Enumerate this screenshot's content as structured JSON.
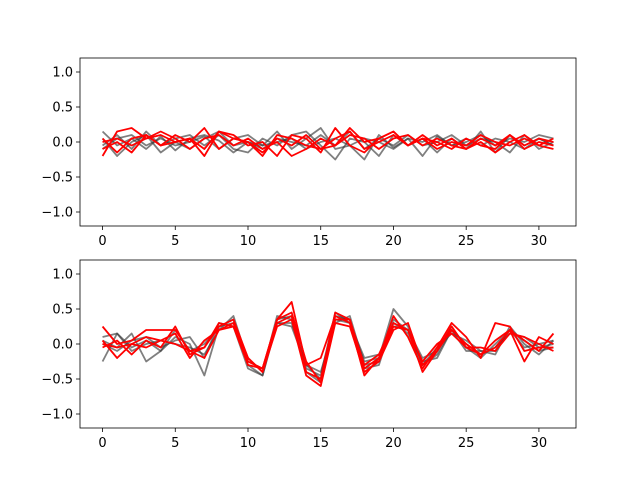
{
  "colors": {
    "gray": "#3a3a3a",
    "red": "#ff0000"
  },
  "chart_data": [
    {
      "type": "line",
      "xlim": [
        -1.55,
        32.55
      ],
      "ylim": [
        -1.2,
        1.2
      ],
      "xticks": [
        0,
        5,
        10,
        15,
        20,
        25,
        30
      ],
      "yticks": [
        1.0,
        0.5,
        0.0,
        -0.5,
        -1.0
      ],
      "xtick_labels": [
        "0",
        "5",
        "10",
        "15",
        "20",
        "25",
        "30"
      ],
      "ytick_labels": [
        "1.0",
        "0.5",
        "0.0",
        "−0.5",
        "−1.0"
      ],
      "grid": false,
      "series": [
        {
          "color": "gray",
          "values": [
            0.15,
            -0.05,
            0.05,
            -0.1,
            0.08,
            -0.12,
            0.05,
            0.1,
            0.02,
            -0.15,
            0.0,
            -0.05,
            0.15,
            -0.1,
            0.05,
            0.2,
            -0.1,
            -0.05,
            -0.25,
            0.1,
            -0.08,
            0.05,
            -0.2,
            0.08,
            -0.05,
            0.0,
            0.1,
            -0.05,
            0.05,
            0.0,
            0.1,
            0.05
          ]
        },
        {
          "color": "gray",
          "values": [
            -0.05,
            0.1,
            -0.1,
            0.15,
            -0.05,
            0.05,
            0.1,
            -0.05,
            0.1,
            -0.1,
            -0.15,
            0.05,
            -0.05,
            0.1,
            0.15,
            -0.05,
            -0.25,
            0.05,
            0.0,
            -0.2,
            0.1,
            -0.05,
            0.05,
            -0.15,
            0.05,
            -0.1,
            0.15,
            -0.15,
            0.1,
            -0.05,
            0.05,
            -0.05
          ]
        },
        {
          "color": "gray",
          "values": [
            0.05,
            -0.2,
            0.0,
            0.1,
            -0.15,
            0.0,
            -0.1,
            0.05,
            0.15,
            -0.05,
            0.0,
            -0.1,
            0.05,
            0.0,
            -0.05,
            0.1,
            -0.05,
            0.15,
            -0.1,
            0.05,
            -0.05,
            0.1,
            -0.05,
            0.0,
            0.1,
            -0.05,
            0.05,
            0.0,
            -0.15,
            0.1,
            -0.1,
            0.0
          ]
        },
        {
          "color": "gray",
          "values": [
            -0.1,
            0.05,
            0.1,
            -0.05,
            0.05,
            -0.05,
            0.0,
            0.08,
            -0.1,
            0.05,
            0.1,
            -0.05,
            0.0,
            0.05,
            -0.1,
            0.0,
            0.05,
            -0.05,
            0.05,
            0.0,
            -0.1,
            0.05,
            0.0,
            0.1,
            -0.05,
            0.05,
            -0.05,
            0.05,
            0.0,
            -0.1,
            0.05,
            -0.05
          ]
        },
        {
          "color": "red",
          "values": [
            -0.2,
            0.15,
            0.2,
            0.05,
            0.1,
            0.0,
            0.05,
            -0.2,
            0.15,
            0.1,
            -0.05,
            0.0,
            -0.2,
            0.1,
            0.05,
            -0.15,
            0.2,
            -0.05,
            -0.15,
            0.05,
            0.15,
            -0.05,
            0.05,
            0.0,
            -0.1,
            0.05,
            -0.05,
            -0.1,
            0.1,
            -0.05,
            0.05,
            0.0
          ]
        },
        {
          "color": "red",
          "values": [
            0.05,
            -0.15,
            0.05,
            0.1,
            -0.05,
            0.1,
            0.0,
            0.2,
            -0.1,
            0.05,
            0.0,
            -0.15,
            0.05,
            -0.05,
            0.1,
            -0.1,
            0.05,
            0.15,
            -0.1,
            0.0,
            0.1,
            -0.05,
            0.05,
            -0.1,
            0.0,
            -0.05,
            0.1,
            0.0,
            -0.05,
            0.05,
            -0.05,
            0.05
          ]
        },
        {
          "color": "red",
          "values": [
            0.0,
            0.05,
            -0.05,
            0.05,
            0.15,
            0.05,
            -0.1,
            0.05,
            0.1,
            -0.05,
            0.05,
            -0.1,
            0.0,
            -0.2,
            -0.1,
            0.05,
            -0.05,
            0.1,
            0.05,
            -0.1,
            0.05,
            0.1,
            -0.05,
            0.05,
            -0.05,
            -0.1,
            0.05,
            -0.05,
            0.1,
            -0.1,
            0.0,
            -0.05
          ]
        },
        {
          "color": "red",
          "values": [
            -0.1,
            0.0,
            -0.15,
            0.1,
            -0.05,
            0.0,
            0.05,
            -0.1,
            0.15,
            0.05,
            0.0,
            -0.2,
            0.1,
            0.05,
            -0.05,
            -0.1,
            -0.05,
            0.2,
            0.0,
            0.05,
            0.15,
            -0.05,
            0.1,
            -0.05,
            0.05,
            -0.1,
            0.0,
            -0.15,
            0.0,
            0.1,
            -0.05,
            -0.1
          ]
        }
      ]
    },
    {
      "type": "line",
      "xlim": [
        -1.55,
        32.55
      ],
      "ylim": [
        -1.2,
        1.2
      ],
      "xticks": [
        0,
        5,
        10,
        15,
        20,
        25,
        30
      ],
      "yticks": [
        1.0,
        0.5,
        0.0,
        -0.5,
        -1.0
      ],
      "xtick_labels": [
        "0",
        "5",
        "10",
        "15",
        "20",
        "25",
        "30"
      ],
      "ytick_labels": [
        "1.0",
        "0.5",
        "0.0",
        "−0.5",
        "−1.0"
      ],
      "grid": false,
      "series": [
        {
          "color": "gray",
          "values": [
            -0.25,
            0.15,
            -0.05,
            0.05,
            -0.1,
            0.1,
            0.0,
            -0.45,
            0.25,
            0.35,
            -0.3,
            -0.45,
            0.35,
            0.4,
            -0.35,
            -0.45,
            0.45,
            0.3,
            -0.25,
            -0.2,
            0.5,
            0.25,
            -0.3,
            -0.15,
            0.2,
            -0.1,
            -0.1,
            -0.15,
            0.25,
            0.0,
            -0.15,
            0.05
          ]
        },
        {
          "color": "gray",
          "values": [
            0.05,
            -0.05,
            0.15,
            -0.25,
            -0.1,
            0.2,
            -0.1,
            0.0,
            0.25,
            0.3,
            -0.2,
            -0.4,
            0.4,
            0.35,
            -0.4,
            -0.55,
            0.4,
            0.35,
            -0.35,
            -0.3,
            0.35,
            0.2,
            -0.2,
            -0.1,
            0.25,
            -0.05,
            -0.2,
            0.0,
            0.2,
            0.05,
            -0.1,
            -0.05
          ]
        },
        {
          "color": "gray",
          "values": [
            0.1,
            0.15,
            -0.1,
            0.0,
            0.05,
            0.0,
            -0.05,
            -0.15,
            0.2,
            0.4,
            -0.25,
            -0.35,
            0.3,
            0.3,
            -0.3,
            -0.4,
            0.3,
            0.4,
            -0.3,
            -0.25,
            0.3,
            0.15,
            -0.25,
            -0.2,
            0.2,
            0.0,
            -0.15,
            -0.05,
            0.15,
            0.1,
            -0.05,
            0.0
          ]
        },
        {
          "color": "gray",
          "values": [
            0.0,
            -0.1,
            0.05,
            0.1,
            -0.05,
            0.05,
            0.1,
            -0.2,
            0.3,
            0.25,
            -0.35,
            -0.45,
            0.3,
            0.25,
            -0.3,
            -0.5,
            0.35,
            0.3,
            -0.2,
            -0.15,
            0.25,
            0.2,
            -0.3,
            -0.05,
            0.15,
            0.05,
            -0.1,
            -0.1,
            0.2,
            -0.05,
            0.0,
            0.05
          ]
        },
        {
          "color": "red",
          "values": [
            0.25,
            0.0,
            0.05,
            0.2,
            0.2,
            0.2,
            -0.1,
            -0.2,
            0.2,
            0.25,
            -0.3,
            -0.35,
            0.35,
            0.6,
            -0.3,
            -0.2,
            0.4,
            0.3,
            -0.45,
            -0.2,
            0.4,
            0.1,
            -0.35,
            -0.05,
            0.3,
            0.1,
            -0.2,
            0.3,
            0.25,
            -0.1,
            -0.05,
            -0.05
          ]
        },
        {
          "color": "red",
          "values": [
            0.05,
            -0.2,
            0.0,
            0.1,
            0.05,
            0.15,
            -0.2,
            0.05,
            0.2,
            0.3,
            -0.2,
            -0.4,
            0.25,
            0.35,
            -0.45,
            -0.6,
            0.3,
            0.25,
            -0.4,
            -0.25,
            0.2,
            0.3,
            -0.3,
            -0.1,
            0.25,
            -0.05,
            -0.15,
            0.05,
            0.2,
            0.05,
            -0.1,
            0.15
          ]
        },
        {
          "color": "red",
          "values": [
            -0.05,
            0.05,
            -0.15,
            0.05,
            -0.05,
            0.25,
            -0.15,
            -0.05,
            0.3,
            0.25,
            -0.25,
            -0.35,
            0.35,
            0.45,
            -0.25,
            -0.55,
            0.35,
            0.35,
            -0.3,
            -0.15,
            0.3,
            0.2,
            -0.25,
            0.0,
            0.15,
            -0.05,
            -0.05,
            -0.1,
            0.15,
            0.1,
            0.0,
            -0.1
          ]
        },
        {
          "color": "red",
          "values": [
            0.0,
            -0.05,
            0.0,
            -0.05,
            0.05,
            0.0,
            -0.1,
            -0.05,
            0.25,
            0.35,
            -0.2,
            -0.4,
            0.3,
            0.4,
            -0.4,
            -0.5,
            0.45,
            0.35,
            -0.35,
            -0.2,
            0.25,
            0.2,
            -0.4,
            -0.1,
            0.2,
            0.0,
            -0.15,
            -0.05,
            0.2,
            -0.25,
            0.1,
            0.0
          ]
        }
      ]
    }
  ]
}
